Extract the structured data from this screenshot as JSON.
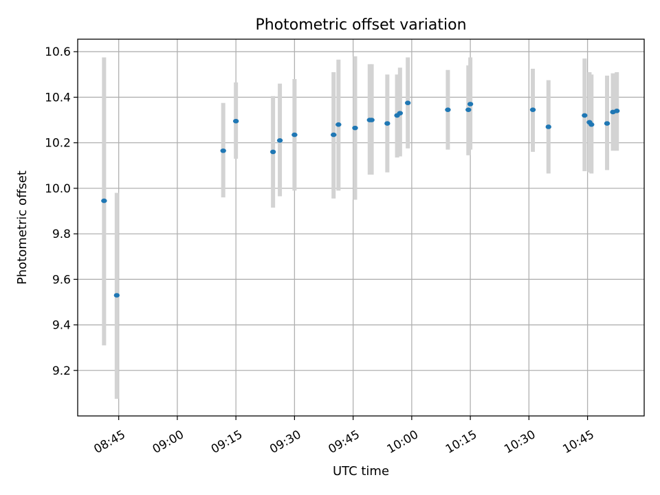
{
  "chart_data": {
    "type": "scatter",
    "title": "Photometric offset variation",
    "xlabel": "UTC time",
    "ylabel": "Photometric offset",
    "x_is_time": true,
    "xlim": [
      "08:34:30",
      "10:59:30"
    ],
    "ylim": [
      9.0,
      10.655
    ],
    "xticks": [
      "08:45",
      "09:00",
      "09:15",
      "09:30",
      "09:45",
      "10:00",
      "10:15",
      "10:30",
      "10:45"
    ],
    "yticks": [
      "9.2",
      "9.4",
      "9.6",
      "9.8",
      "10.0",
      "10.2",
      "10.4",
      "10.6"
    ],
    "grid": true,
    "errorbar_color": "#d3d3d3",
    "marker_color": "#1f77b4",
    "points": [
      {
        "x": "08:41:15",
        "y": 9.945,
        "lo": 9.31,
        "hi": 10.575
      },
      {
        "x": "08:44:30",
        "y": 9.53,
        "lo": 9.075,
        "hi": 9.98
      },
      {
        "x": "09:11:45",
        "y": 10.165,
        "lo": 9.96,
        "hi": 10.375
      },
      {
        "x": "09:15:00",
        "y": 10.295,
        "lo": 10.13,
        "hi": 10.465
      },
      {
        "x": "09:24:30",
        "y": 10.16,
        "lo": 9.915,
        "hi": 10.405
      },
      {
        "x": "09:26:15",
        "y": 10.21,
        "lo": 9.965,
        "hi": 10.46
      },
      {
        "x": "09:30:00",
        "y": 10.235,
        "lo": 9.99,
        "hi": 10.48
      },
      {
        "x": "09:40:00",
        "y": 10.235,
        "lo": 9.955,
        "hi": 10.51
      },
      {
        "x": "09:41:15",
        "y": 10.28,
        "lo": 9.99,
        "hi": 10.565
      },
      {
        "x": "09:45:30",
        "y": 10.265,
        "lo": 9.95,
        "hi": 10.58
      },
      {
        "x": "09:49:15",
        "y": 10.3,
        "lo": 10.06,
        "hi": 10.545
      },
      {
        "x": "09:49:45",
        "y": 10.3,
        "lo": 10.06,
        "hi": 10.545
      },
      {
        "x": "09:53:45",
        "y": 10.285,
        "lo": 10.07,
        "hi": 10.5
      },
      {
        "x": "09:56:15",
        "y": 10.32,
        "lo": 10.135,
        "hi": 10.5
      },
      {
        "x": "09:57:00",
        "y": 10.33,
        "lo": 10.14,
        "hi": 10.53
      },
      {
        "x": "09:59:00",
        "y": 10.375,
        "lo": 10.175,
        "hi": 10.575
      },
      {
        "x": "10:09:15",
        "y": 10.345,
        "lo": 10.17,
        "hi": 10.52
      },
      {
        "x": "10:14:30",
        "y": 10.345,
        "lo": 10.145,
        "hi": 10.54
      },
      {
        "x": "10:15:00",
        "y": 10.37,
        "lo": 10.17,
        "hi": 10.575
      },
      {
        "x": "10:31:00",
        "y": 10.345,
        "lo": 10.16,
        "hi": 10.525
      },
      {
        "x": "10:35:00",
        "y": 10.27,
        "lo": 10.065,
        "hi": 10.475
      },
      {
        "x": "10:44:15",
        "y": 10.32,
        "lo": 10.075,
        "hi": 10.57
      },
      {
        "x": "10:45:30",
        "y": 10.29,
        "lo": 10.07,
        "hi": 10.51
      },
      {
        "x": "10:46:00",
        "y": 10.28,
        "lo": 10.065,
        "hi": 10.5
      },
      {
        "x": "10:50:00",
        "y": 10.285,
        "lo": 10.08,
        "hi": 10.495
      },
      {
        "x": "10:51:30",
        "y": 10.335,
        "lo": 10.165,
        "hi": 10.505
      },
      {
        "x": "10:52:30",
        "y": 10.34,
        "lo": 10.165,
        "hi": 10.51
      }
    ]
  }
}
